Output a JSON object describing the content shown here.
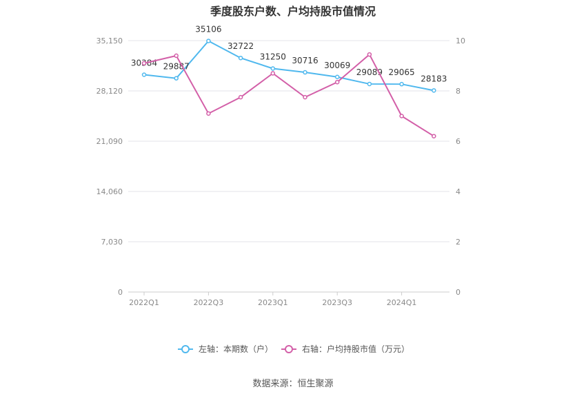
{
  "chart_data": {
    "type": "line",
    "title": "季度股东户数、户均持股市值情况",
    "categories": [
      "2022Q1",
      "2022Q2",
      "2022Q3",
      "2022Q4",
      "2023Q1",
      "2023Q2",
      "2023Q3",
      "2023Q4",
      "2024Q1",
      "2024Q2"
    ],
    "x_tick_labels": [
      "2022Q1",
      "2022Q3",
      "2023Q1",
      "2023Q3",
      "2024Q1"
    ],
    "left_axis": {
      "ylim": [
        0,
        35150
      ],
      "ticks": [
        "0",
        "7,030",
        "14,060",
        "21,090",
        "28,120",
        "35,150"
      ]
    },
    "right_axis": {
      "ylim": [
        0,
        10
      ],
      "ticks": [
        "0",
        "2",
        "4",
        "6",
        "8",
        "10"
      ]
    },
    "series": [
      {
        "name": "左轴：本期数（户）",
        "axis": "left",
        "color": "#4fb8ee",
        "values": [
          30384,
          29887,
          35106,
          32722,
          31250,
          30716,
          30069,
          29089,
          29065,
          28183
        ],
        "labels": [
          "30384",
          "29887",
          "35106",
          "32722",
          "31250",
          "30716",
          "30069",
          "29089",
          "29065",
          "28183"
        ]
      },
      {
        "name": "右轴：户均持股市值（万元）",
        "axis": "right",
        "color": "#d35fa8",
        "values": [
          9.1,
          9.4,
          7.1,
          7.75,
          8.7,
          7.75,
          8.35,
          9.45,
          7.0,
          6.2
        ]
      }
    ],
    "grid": true,
    "legend": "bottom-center"
  },
  "source": "数据来源：恒生聚源"
}
